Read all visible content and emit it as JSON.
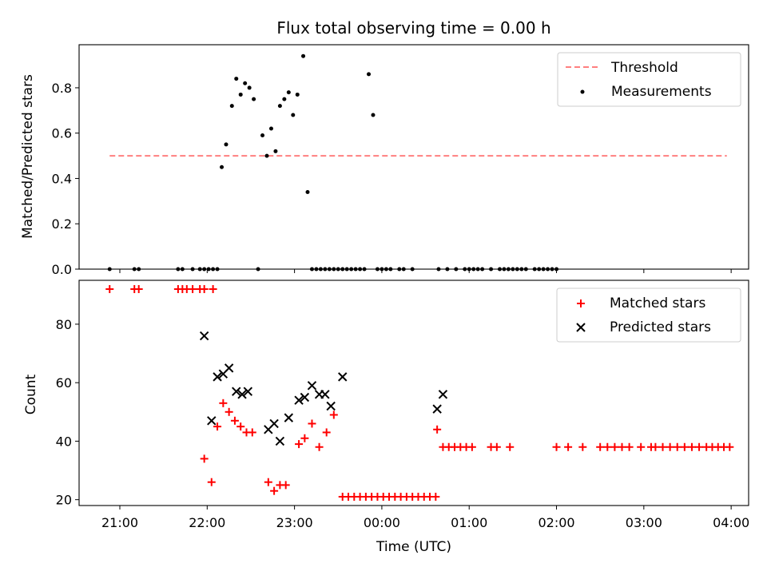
{
  "chart_data": [
    {
      "type": "scatter",
      "title": "Flux total observing time = 0.00 h",
      "xlabel": "",
      "ylabel": "Matched/Predicted stars",
      "xlim": [
        "20:32",
        "04:12"
      ],
      "ylim": [
        0,
        0.99
      ],
      "yticks": [
        "0.0",
        "0.2",
        "0.4",
        "0.6",
        "0.8"
      ],
      "grid": false,
      "legend": "top-right",
      "threshold": {
        "name": "Threshold",
        "value": 0.5,
        "x_start": "20:53",
        "x_end": "03:57",
        "color": "#ff7f7f",
        "style": "dashed"
      },
      "series": [
        {
          "name": "Measurements",
          "color": "#000000",
          "points": [
            [
              "20:53",
              0
            ],
            [
              "21:10",
              0
            ],
            [
              "21:13",
              0
            ],
            [
              "21:40",
              0
            ],
            [
              "21:43",
              0
            ],
            [
              "21:50",
              0
            ],
            [
              "21:55",
              0
            ],
            [
              "21:58",
              0
            ],
            [
              "22:01",
              0
            ],
            [
              "22:04",
              0
            ],
            [
              "22:07",
              0
            ],
            [
              "22:10",
              0.45
            ],
            [
              "22:13",
              0.55
            ],
            [
              "22:17",
              0.72
            ],
            [
              "22:20",
              0.84
            ],
            [
              "22:23",
              0.77
            ],
            [
              "22:26",
              0.82
            ],
            [
              "22:29",
              0.8
            ],
            [
              "22:32",
              0.75
            ],
            [
              "22:35",
              0
            ],
            [
              "22:38",
              0.59
            ],
            [
              "22:41",
              0.5
            ],
            [
              "22:44",
              0.62
            ],
            [
              "22:47",
              0.52
            ],
            [
              "22:50",
              0.72
            ],
            [
              "22:53",
              0.75
            ],
            [
              "22:56",
              0.78
            ],
            [
              "22:59",
              0.68
            ],
            [
              "23:02",
              0.77
            ],
            [
              "23:06",
              0.94
            ],
            [
              "23:09",
              0.34
            ],
            [
              "23:12",
              0
            ],
            [
              "23:15",
              0
            ],
            [
              "23:18",
              0
            ],
            [
              "23:21",
              0
            ],
            [
              "23:24",
              0
            ],
            [
              "23:27",
              0
            ],
            [
              "23:30",
              0
            ],
            [
              "23:33",
              0
            ],
            [
              "23:36",
              0
            ],
            [
              "23:39",
              0
            ],
            [
              "23:42",
              0
            ],
            [
              "23:45",
              0
            ],
            [
              "23:48",
              0
            ],
            [
              "23:51",
              0.86
            ],
            [
              "23:54",
              0.68
            ],
            [
              "23:57",
              0
            ],
            [
              "00:00",
              0
            ],
            [
              "00:03",
              0
            ],
            [
              "00:06",
              0
            ],
            [
              "00:12",
              0
            ],
            [
              "00:15",
              0
            ],
            [
              "00:21",
              0
            ],
            [
              "00:39",
              0
            ],
            [
              "00:45",
              0
            ],
            [
              "00:51",
              0
            ],
            [
              "00:57",
              0
            ],
            [
              "01:00",
              0
            ],
            [
              "01:03",
              0
            ],
            [
              "01:06",
              0
            ],
            [
              "01:09",
              0
            ],
            [
              "01:15",
              0
            ],
            [
              "01:21",
              0
            ],
            [
              "01:24",
              0
            ],
            [
              "01:27",
              0
            ],
            [
              "01:30",
              0
            ],
            [
              "01:33",
              0
            ],
            [
              "01:36",
              0
            ],
            [
              "01:39",
              0
            ],
            [
              "01:45",
              0
            ],
            [
              "01:48",
              0
            ],
            [
              "01:51",
              0
            ],
            [
              "01:54",
              0
            ],
            [
              "01:57",
              0
            ],
            [
              "02:00",
              0
            ]
          ]
        }
      ]
    },
    {
      "type": "scatter",
      "xlabel": "Time (UTC)",
      "ylabel": "Count",
      "xlim": [
        "20:32",
        "04:12"
      ],
      "ylim": [
        18,
        95
      ],
      "xticks": [
        "21:00",
        "22:00",
        "23:00",
        "00:00",
        "01:00",
        "02:00",
        "03:00",
        "04:00"
      ],
      "yticks": [
        "20",
        "40",
        "60",
        "80"
      ],
      "grid": false,
      "legend": "top-right",
      "series": [
        {
          "name": "Matched stars",
          "marker": "+",
          "color": "#ff0000",
          "points": [
            [
              "20:53",
              92
            ],
            [
              "21:10",
              92
            ],
            [
              "21:13",
              92
            ],
            [
              "21:40",
              92
            ],
            [
              "21:43",
              92
            ],
            [
              "21:46",
              92
            ],
            [
              "21:50",
              92
            ],
            [
              "21:55",
              92
            ],
            [
              "21:58",
              92
            ],
            [
              "22:04",
              92
            ],
            [
              "21:58",
              34
            ],
            [
              "22:03",
              26
            ],
            [
              "22:07",
              45
            ],
            [
              "22:11",
              53
            ],
            [
              "22:15",
              50
            ],
            [
              "22:19",
              47
            ],
            [
              "22:23",
              45
            ],
            [
              "22:27",
              43
            ],
            [
              "22:31",
              43
            ],
            [
              "22:42",
              26
            ],
            [
              "22:46",
              23
            ],
            [
              "22:50",
              25
            ],
            [
              "22:54",
              25
            ],
            [
              "23:03",
              39
            ],
            [
              "23:07",
              41
            ],
            [
              "23:12",
              46
            ],
            [
              "23:17",
              38
            ],
            [
              "23:22",
              43
            ],
            [
              "23:27",
              49
            ],
            [
              "23:33",
              21
            ],
            [
              "23:37",
              21
            ],
            [
              "23:41",
              21
            ],
            [
              "23:45",
              21
            ],
            [
              "23:49",
              21
            ],
            [
              "23:53",
              21
            ],
            [
              "23:57",
              21
            ],
            [
              "00:01",
              21
            ],
            [
              "00:05",
              21
            ],
            [
              "00:09",
              21
            ],
            [
              "00:13",
              21
            ],
            [
              "00:17",
              21
            ],
            [
              "00:21",
              21
            ],
            [
              "00:25",
              21
            ],
            [
              "00:29",
              21
            ],
            [
              "00:33",
              21
            ],
            [
              "00:37",
              21
            ],
            [
              "00:38",
              44
            ],
            [
              "00:42",
              38
            ],
            [
              "00:46",
              38
            ],
            [
              "00:50",
              38
            ],
            [
              "00:54",
              38
            ],
            [
              "00:58",
              38
            ],
            [
              "01:02",
              38
            ],
            [
              "01:15",
              38
            ],
            [
              "01:19",
              38
            ],
            [
              "01:28",
              38
            ],
            [
              "02:00",
              38
            ],
            [
              "02:08",
              38
            ],
            [
              "02:18",
              38
            ],
            [
              "02:30",
              38
            ],
            [
              "02:35",
              38
            ],
            [
              "02:40",
              38
            ],
            [
              "02:45",
              38
            ],
            [
              "02:50",
              38
            ],
            [
              "02:58",
              38
            ],
            [
              "03:05",
              38
            ],
            [
              "03:08",
              38
            ],
            [
              "03:13",
              38
            ],
            [
              "03:18",
              38
            ],
            [
              "03:23",
              38
            ],
            [
              "03:28",
              38
            ],
            [
              "03:33",
              38
            ],
            [
              "03:38",
              38
            ],
            [
              "03:43",
              38
            ],
            [
              "03:47",
              38
            ],
            [
              "03:51",
              38
            ],
            [
              "03:55",
              38
            ],
            [
              "03:59",
              38
            ]
          ]
        },
        {
          "name": "Predicted stars",
          "marker": "x",
          "color": "#000000",
          "points": [
            [
              "21:58",
              76
            ],
            [
              "22:03",
              47
            ],
            [
              "22:07",
              62
            ],
            [
              "22:11",
              63
            ],
            [
              "22:15",
              65
            ],
            [
              "22:20",
              57
            ],
            [
              "22:24",
              56
            ],
            [
              "22:28",
              57
            ],
            [
              "22:42",
              44
            ],
            [
              "22:46",
              46
            ],
            [
              "22:50",
              40
            ],
            [
              "22:56",
              48
            ],
            [
              "23:03",
              54
            ],
            [
              "23:07",
              55
            ],
            [
              "23:12",
              59
            ],
            [
              "23:17",
              56
            ],
            [
              "23:21",
              56
            ],
            [
              "23:25",
              52
            ],
            [
              "23:33",
              62
            ],
            [
              "00:38",
              51
            ],
            [
              "00:42",
              56
            ]
          ]
        }
      ]
    }
  ]
}
